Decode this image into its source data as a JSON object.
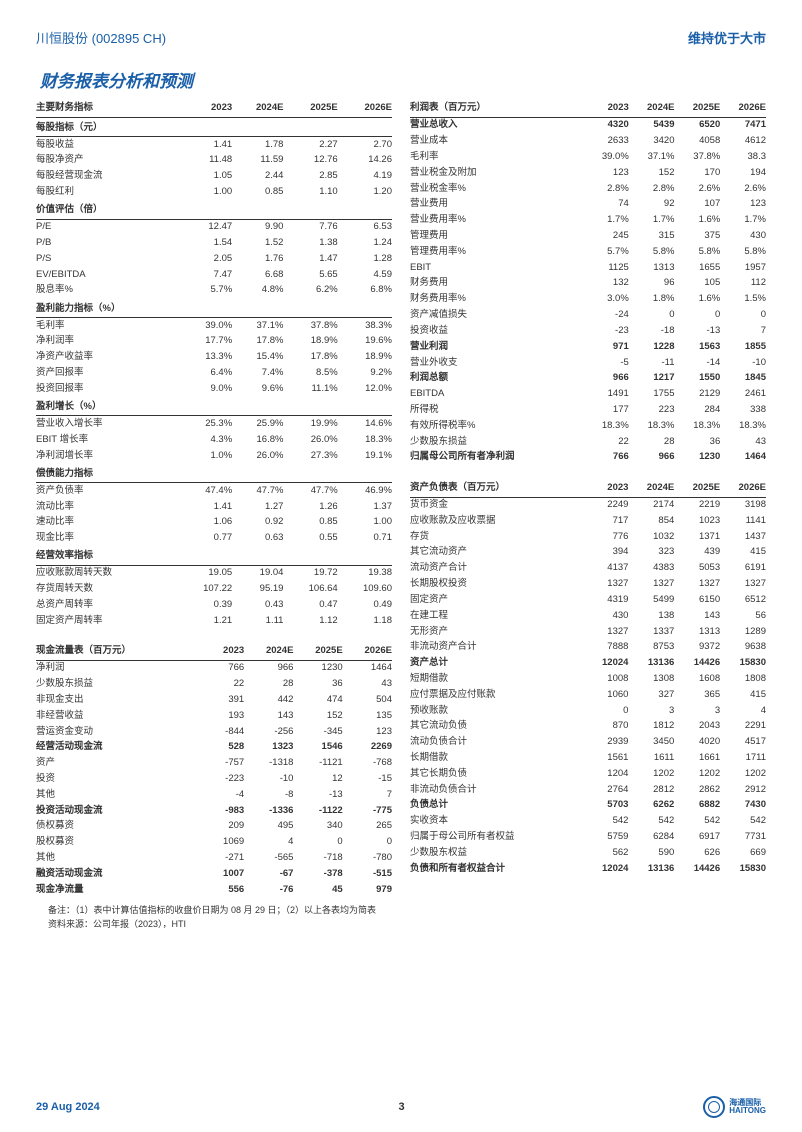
{
  "header": {
    "company": "川恒股份 (002895 CH)",
    "rating": "维持优于大市"
  },
  "title": "财务报表分析和预测",
  "colheads": [
    "2023",
    "2024E",
    "2025E",
    "2026E"
  ],
  "left": {
    "t1": {
      "header": "主要财务指标",
      "sections": [
        {
          "name": "每股指标（元）",
          "rows": [
            [
              "每股收益",
              "1.41",
              "1.78",
              "2.27",
              "2.70"
            ],
            [
              "每股净资产",
              "11.48",
              "11.59",
              "12.76",
              "14.26"
            ],
            [
              "每股经营现金流",
              "1.05",
              "2.44",
              "2.85",
              "4.19"
            ],
            [
              "每股红利",
              "1.00",
              "0.85",
              "1.10",
              "1.20"
            ]
          ]
        },
        {
          "name": "价值评估（倍）",
          "rows": [
            [
              "P/E",
              "12.47",
              "9.90",
              "7.76",
              "6.53"
            ],
            [
              "P/B",
              "1.54",
              "1.52",
              "1.38",
              "1.24"
            ],
            [
              "P/S",
              "2.05",
              "1.76",
              "1.47",
              "1.28"
            ],
            [
              "EV/EBITDA",
              "7.47",
              "6.68",
              "5.65",
              "4.59"
            ],
            [
              "股息率%",
              "5.7%",
              "4.8%",
              "6.2%",
              "6.8%"
            ]
          ]
        },
        {
          "name": "盈利能力指标（%）",
          "rows": [
            [
              "毛利率",
              "39.0%",
              "37.1%",
              "37.8%",
              "38.3%"
            ],
            [
              "净利润率",
              "17.7%",
              "17.8%",
              "18.9%",
              "19.6%"
            ],
            [
              "净资产收益率",
              "13.3%",
              "15.4%",
              "17.8%",
              "18.9%"
            ],
            [
              "资产回报率",
              "6.4%",
              "7.4%",
              "8.5%",
              "9.2%"
            ],
            [
              "投资回报率",
              "9.0%",
              "9.6%",
              "11.1%",
              "12.0%"
            ]
          ]
        },
        {
          "name": "盈利增长（%）",
          "rows": [
            [
              "营业收入增长率",
              "25.3%",
              "25.9%",
              "19.9%",
              "14.6%"
            ],
            [
              "EBIT 增长率",
              "4.3%",
              "16.8%",
              "26.0%",
              "18.3%"
            ],
            [
              "净利润增长率",
              "1.0%",
              "26.0%",
              "27.3%",
              "19.1%"
            ]
          ]
        },
        {
          "name": "偿债能力指标",
          "rows": [
            [
              "资产负债率",
              "47.4%",
              "47.7%",
              "47.7%",
              "46.9%"
            ],
            [
              "流动比率",
              "1.41",
              "1.27",
              "1.26",
              "1.37"
            ],
            [
              "速动比率",
              "1.06",
              "0.92",
              "0.85",
              "1.00"
            ],
            [
              "现金比率",
              "0.77",
              "0.63",
              "0.55",
              "0.71"
            ]
          ]
        },
        {
          "name": "经营效率指标",
          "rows": [
            [
              "应收账款周转天数",
              "19.05",
              "19.04",
              "19.72",
              "19.38"
            ],
            [
              "存货周转天数",
              "107.22",
              "95.19",
              "106.64",
              "109.60"
            ],
            [
              "总资产周转率",
              "0.39",
              "0.43",
              "0.47",
              "0.49"
            ],
            [
              "固定资产周转率",
              "1.21",
              "1.11",
              "1.12",
              "1.18"
            ]
          ]
        }
      ]
    },
    "t2": {
      "header": "现金流量表（百万元）",
      "rows": [
        [
          "净利润",
          "766",
          "966",
          "1230",
          "1464"
        ],
        [
          "少数股东损益",
          "22",
          "28",
          "36",
          "43"
        ],
        [
          "非现金支出",
          "391",
          "442",
          "474",
          "504"
        ],
        [
          "非经营收益",
          "193",
          "143",
          "152",
          "135"
        ],
        [
          "营运资金变动",
          "-844",
          "-256",
          "-345",
          "123"
        ]
      ],
      "bold1": [
        "经营活动现金流",
        "528",
        "1323",
        "1546",
        "2269"
      ],
      "rows2": [
        [
          "资产",
          "-757",
          "-1318",
          "-1121",
          "-768"
        ],
        [
          "投资",
          "-223",
          "-10",
          "12",
          "-15"
        ],
        [
          "其他",
          "-4",
          "-8",
          "-13",
          "7"
        ]
      ],
      "bold2": [
        "投资活动现金流",
        "-983",
        "-1336",
        "-1122",
        "-775"
      ],
      "rows3": [
        [
          "债权募资",
          "209",
          "495",
          "340",
          "265"
        ],
        [
          "股权募资",
          "1069",
          "4",
          "0",
          "0"
        ],
        [
          "其他",
          "-271",
          "-565",
          "-718",
          "-780"
        ]
      ],
      "bold3": [
        "融资活动现金流",
        "1007",
        "-67",
        "-378",
        "-515"
      ],
      "bold4": [
        "现金净流量",
        "556",
        "-76",
        "45",
        "979"
      ]
    }
  },
  "right": {
    "t1": {
      "header": "利润表（百万元）",
      "rows": [
        [
          "营业总收入",
          "4320",
          "5439",
          "6520",
          "7471",
          true
        ],
        [
          "营业成本",
          "2633",
          "3420",
          "4058",
          "4612"
        ],
        [
          "毛利率",
          "39.0%",
          "37.1%",
          "37.8%",
          "38.3"
        ],
        [
          "营业税金及附加",
          "123",
          "152",
          "170",
          "194"
        ],
        [
          "营业税金率%",
          "2.8%",
          "2.8%",
          "2.6%",
          "2.6%"
        ],
        [
          "营业费用",
          "74",
          "92",
          "107",
          "123"
        ],
        [
          "营业费用率%",
          "1.7%",
          "1.7%",
          "1.6%",
          "1.7%"
        ],
        [
          "管理费用",
          "245",
          "315",
          "375",
          "430"
        ],
        [
          "管理费用率%",
          "5.7%",
          "5.8%",
          "5.8%",
          "5.8%"
        ],
        [
          "EBIT",
          "1125",
          "1313",
          "1655",
          "1957"
        ],
        [
          "财务费用",
          "132",
          "96",
          "105",
          "112"
        ],
        [
          "财务费用率%",
          "3.0%",
          "1.8%",
          "1.6%",
          "1.5%"
        ],
        [
          "资产减值损失",
          "-24",
          "0",
          "0",
          "0"
        ],
        [
          "投资收益",
          "-23",
          "-18",
          "-13",
          "7"
        ],
        [
          "营业利润",
          "971",
          "1228",
          "1563",
          "1855",
          true
        ],
        [
          "营业外收支",
          "-5",
          "-11",
          "-14",
          "-10"
        ],
        [
          "利润总额",
          "966",
          "1217",
          "1550",
          "1845",
          true
        ],
        [
          "EBITDA",
          "1491",
          "1755",
          "2129",
          "2461"
        ],
        [
          "所得税",
          "177",
          "223",
          "284",
          "338"
        ],
        [
          "有效所得税率%",
          "18.3%",
          "18.3%",
          "18.3%",
          "18.3%"
        ],
        [
          "少数股东损益",
          "22",
          "28",
          "36",
          "43"
        ],
        [
          "归属母公司所有者净利润",
          "766",
          "966",
          "1230",
          "1464",
          true
        ]
      ]
    },
    "t2": {
      "header": "资产负债表（百万元）",
      "rows": [
        [
          "货币资金",
          "2249",
          "2174",
          "2219",
          "3198"
        ],
        [
          "应收账款及应收票据",
          "717",
          "854",
          "1023",
          "1141"
        ],
        [
          "存货",
          "776",
          "1032",
          "1371",
          "1437"
        ],
        [
          "其它流动资产",
          "394",
          "323",
          "439",
          "415"
        ],
        [
          "流动资产合计",
          "4137",
          "4383",
          "5053",
          "6191"
        ],
        [
          "长期股权投资",
          "1327",
          "1327",
          "1327",
          "1327"
        ],
        [
          "固定资产",
          "4319",
          "5499",
          "6150",
          "6512"
        ],
        [
          "在建工程",
          "430",
          "138",
          "143",
          "56"
        ],
        [
          "无形资产",
          "1327",
          "1337",
          "1313",
          "1289"
        ],
        [
          "非流动资产合计",
          "7888",
          "8753",
          "9372",
          "9638"
        ],
        [
          "资产总计",
          "12024",
          "13136",
          "14426",
          "15830",
          true
        ],
        [
          "短期借款",
          "1008",
          "1308",
          "1608",
          "1808"
        ],
        [
          "应付票据及应付账款",
          "1060",
          "327",
          "365",
          "415"
        ],
        [
          "预收账款",
          "0",
          "3",
          "3",
          "4"
        ],
        [
          "其它流动负债",
          "870",
          "1812",
          "2043",
          "2291"
        ],
        [
          "流动负债合计",
          "2939",
          "3450",
          "4020",
          "4517"
        ],
        [
          "长期借款",
          "1561",
          "1611",
          "1661",
          "1711"
        ],
        [
          "其它长期负债",
          "1204",
          "1202",
          "1202",
          "1202"
        ],
        [
          "非流动负债合计",
          "2764",
          "2812",
          "2862",
          "2912"
        ],
        [
          "负债总计",
          "5703",
          "6262",
          "6882",
          "7430",
          true
        ],
        [
          "实收资本",
          "542",
          "542",
          "542",
          "542"
        ],
        [
          "归属于母公司所有者权益",
          "5759",
          "6284",
          "6917",
          "7731"
        ],
        [
          "少数股东权益",
          "562",
          "590",
          "626",
          "669"
        ],
        [
          "负债和所有者权益合计",
          "12024",
          "13136",
          "14426",
          "15830",
          true
        ]
      ]
    }
  },
  "notes": [
    "备注：（1）表中计算估值指标的收盘价日期为 08 月 29 日；（2）以上各表均为简表",
    "资料来源：公司年报（2023），HTI"
  ],
  "footer": {
    "date": "29 Aug 2024",
    "page": "3",
    "brand_cn": "海通国际",
    "brand_en": "HAITONG"
  }
}
